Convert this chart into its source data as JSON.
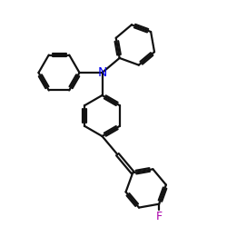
{
  "bg_color": "#ffffff",
  "bond_color": "#111111",
  "N_color": "#0000ee",
  "F_color": "#aa00aa",
  "bond_width": 1.6,
  "dbo": 0.08,
  "figsize": [
    2.5,
    2.5
  ],
  "dpi": 100,
  "xlim": [
    0,
    10
  ],
  "ylim": [
    0,
    10
  ]
}
